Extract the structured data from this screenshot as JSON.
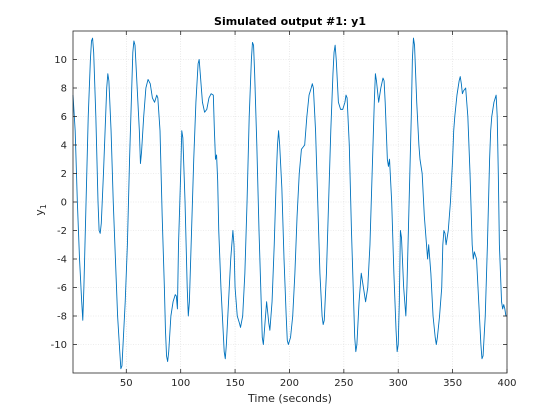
{
  "chart_data": {
    "type": "line",
    "title": "Simulated output #1: y1",
    "xlabel": "Time (seconds)",
    "ylabel": "y",
    "ylabel_subscript": "1",
    "xlim": [
      1,
      400
    ],
    "ylim": [
      -12,
      12
    ],
    "grid": true,
    "xticks": [
      50,
      100,
      150,
      200,
      250,
      300,
      350,
      400
    ],
    "yticks": [
      -10,
      -8,
      -6,
      -4,
      -2,
      0,
      2,
      4,
      6,
      8,
      10
    ],
    "series": [
      {
        "color": "#0072bd",
        "points": [
          [
            1,
            7.5
          ],
          [
            3,
            5
          ],
          [
            5,
            0
          ],
          [
            7,
            -4
          ],
          [
            9,
            -7
          ],
          [
            10,
            -8.3
          ],
          [
            11,
            -6
          ],
          [
            13,
            0
          ],
          [
            15,
            6
          ],
          [
            17,
            10
          ],
          [
            18,
            11.3
          ],
          [
            19,
            11.5
          ],
          [
            20,
            10.5
          ],
          [
            22,
            6
          ],
          [
            24,
            0
          ],
          [
            25,
            -2
          ],
          [
            26,
            -2.2
          ],
          [
            27,
            -1.5
          ],
          [
            29,
            2
          ],
          [
            31,
            6
          ],
          [
            32,
            8
          ],
          [
            33,
            9
          ],
          [
            34,
            8.5
          ],
          [
            36,
            5
          ],
          [
            38,
            0
          ],
          [
            40,
            -4
          ],
          [
            42,
            -8
          ],
          [
            44,
            -10.5
          ],
          [
            45,
            -11.7
          ],
          [
            46,
            -11.5
          ],
          [
            47,
            -10
          ],
          [
            49,
            -7
          ],
          [
            51,
            -3
          ],
          [
            53,
            3
          ],
          [
            55,
            8
          ],
          [
            56,
            10.5
          ],
          [
            57,
            11.3
          ],
          [
            58,
            11
          ],
          [
            60,
            8
          ],
          [
            62,
            5
          ],
          [
            63,
            2.7
          ],
          [
            64,
            3.5
          ],
          [
            66,
            6
          ],
          [
            68,
            8
          ],
          [
            70,
            8.6
          ],
          [
            72,
            8.3
          ],
          [
            74,
            7.3
          ],
          [
            76,
            7
          ],
          [
            78,
            7.5
          ],
          [
            79,
            7.3
          ],
          [
            81,
            5
          ],
          [
            83,
            -1
          ],
          [
            85,
            -6
          ],
          [
            86,
            -9
          ],
          [
            87,
            -10.8
          ],
          [
            88,
            -11.2
          ],
          [
            89,
            -10.5
          ],
          [
            91,
            -8
          ],
          [
            93,
            -7
          ],
          [
            95,
            -6.5
          ],
          [
            96,
            -6.6
          ],
          [
            97,
            -7.5
          ],
          [
            98,
            -3
          ],
          [
            100,
            2
          ],
          [
            101,
            5
          ],
          [
            102,
            4.5
          ],
          [
            104,
            0
          ],
          [
            106,
            -6
          ],
          [
            107,
            -8
          ],
          [
            108,
            -7
          ],
          [
            110,
            -2
          ],
          [
            112,
            3
          ],
          [
            114,
            7
          ],
          [
            116,
            9.7
          ],
          [
            117,
            10
          ],
          [
            118,
            9
          ],
          [
            120,
            7
          ],
          [
            122,
            6.3
          ],
          [
            124,
            6.5
          ],
          [
            126,
            7.3
          ],
          [
            128,
            7.6
          ],
          [
            130,
            7.5
          ],
          [
            131,
            5
          ],
          [
            132,
            3
          ],
          [
            133,
            3.3
          ],
          [
            134,
            1.5
          ],
          [
            135,
            -2
          ],
          [
            137,
            -6
          ],
          [
            139,
            -9
          ],
          [
            140,
            -10.5
          ],
          [
            141,
            -11
          ],
          [
            142,
            -10
          ],
          [
            144,
            -7
          ],
          [
            146,
            -4
          ],
          [
            148,
            -2
          ],
          [
            149,
            -3
          ],
          [
            150,
            -6
          ],
          [
            152,
            -8
          ],
          [
            154,
            -8.5
          ],
          [
            155,
            -8.8
          ],
          [
            157,
            -8
          ],
          [
            159,
            -5
          ],
          [
            161,
            0
          ],
          [
            163,
            6
          ],
          [
            165,
            10
          ],
          [
            166,
            11.2
          ],
          [
            167,
            11
          ],
          [
            168,
            9
          ],
          [
            170,
            4
          ],
          [
            172,
            -2
          ],
          [
            174,
            -7
          ],
          [
            175,
            -9.5
          ],
          [
            176,
            -10
          ],
          [
            177,
            -9
          ],
          [
            179,
            -7
          ],
          [
            181,
            -8.5
          ],
          [
            182,
            -9
          ],
          [
            184,
            -7
          ],
          [
            186,
            -3
          ],
          [
            188,
            2
          ],
          [
            189,
            4
          ],
          [
            190,
            5
          ],
          [
            191,
            4
          ],
          [
            193,
            1
          ],
          [
            195,
            -4
          ],
          [
            197,
            -8
          ],
          [
            198,
            -9.7
          ],
          [
            199,
            -10
          ],
          [
            201,
            -9.5
          ],
          [
            203,
            -8
          ],
          [
            205,
            -5
          ],
          [
            207,
            -1
          ],
          [
            209,
            2
          ],
          [
            211,
            3.7
          ],
          [
            212,
            3.8
          ],
          [
            214,
            4
          ],
          [
            216,
            6
          ],
          [
            218,
            7.5
          ],
          [
            220,
            8
          ],
          [
            221,
            8.3
          ],
          [
            222,
            8
          ],
          [
            224,
            5
          ],
          [
            226,
            0
          ],
          [
            228,
            -5
          ],
          [
            230,
            -8
          ],
          [
            231,
            -8.6
          ],
          [
            232,
            -8.3
          ],
          [
            234,
            -5
          ],
          [
            236,
            0
          ],
          [
            238,
            5
          ],
          [
            240,
            9
          ],
          [
            241,
            10.5
          ],
          [
            242,
            11
          ],
          [
            243,
            10
          ],
          [
            245,
            7
          ],
          [
            247,
            6.5
          ],
          [
            249,
            6.5
          ],
          [
            251,
            7
          ],
          [
            252,
            7.5
          ],
          [
            253,
            7.3
          ],
          [
            255,
            4
          ],
          [
            257,
            -2
          ],
          [
            259,
            -7
          ],
          [
            260,
            -9.5
          ],
          [
            261,
            -10.5
          ],
          [
            262,
            -10
          ],
          [
            264,
            -7
          ],
          [
            266,
            -5
          ],
          [
            268,
            -6
          ],
          [
            270,
            -7
          ],
          [
            272,
            -6
          ],
          [
            274,
            -3
          ],
          [
            276,
            2
          ],
          [
            278,
            7
          ],
          [
            279,
            9
          ],
          [
            280,
            8.5
          ],
          [
            282,
            7
          ],
          [
            284,
            8
          ],
          [
            286,
            8.7
          ],
          [
            287,
            8.5
          ],
          [
            288,
            7
          ],
          [
            290,
            3
          ],
          [
            291,
            2.5
          ],
          [
            292,
            3
          ],
          [
            294,
            0
          ],
          [
            296,
            -5
          ],
          [
            298,
            -9
          ],
          [
            299,
            -10.5
          ],
          [
            300,
            -10
          ],
          [
            301,
            -7
          ],
          [
            302,
            -2
          ],
          [
            303,
            -2.5
          ],
          [
            305,
            -6
          ],
          [
            307,
            -8
          ],
          [
            308,
            -6
          ],
          [
            310,
            0
          ],
          [
            312,
            6
          ],
          [
            313,
            10
          ],
          [
            314,
            11.5
          ],
          [
            315,
            11
          ],
          [
            317,
            7
          ],
          [
            319,
            4
          ],
          [
            320,
            3
          ],
          [
            322,
            2
          ],
          [
            324,
            -1
          ],
          [
            326,
            -3
          ],
          [
            327,
            -4
          ],
          [
            328,
            -3
          ],
          [
            330,
            -5
          ],
          [
            332,
            -8
          ],
          [
            334,
            -9.5
          ],
          [
            335,
            -10
          ],
          [
            336,
            -9.5
          ],
          [
            338,
            -8
          ],
          [
            340,
            -6
          ],
          [
            341,
            -3
          ],
          [
            342,
            -2
          ],
          [
            343,
            -2.2
          ],
          [
            344,
            -3
          ],
          [
            346,
            -2
          ],
          [
            348,
            0
          ],
          [
            350,
            3
          ],
          [
            351,
            5
          ],
          [
            352,
            6
          ],
          [
            354,
            7.5
          ],
          [
            356,
            8.5
          ],
          [
            357,
            8.8
          ],
          [
            358,
            8.3
          ],
          [
            359,
            7.6
          ],
          [
            360,
            7.8
          ],
          [
            362,
            8
          ],
          [
            364,
            6
          ],
          [
            366,
            2
          ],
          [
            368,
            -3
          ],
          [
            369,
            -4
          ],
          [
            370,
            -3.5
          ],
          [
            372,
            -4
          ],
          [
            374,
            -7
          ],
          [
            376,
            -10
          ],
          [
            377,
            -11
          ],
          [
            378,
            -10.8
          ],
          [
            380,
            -8
          ],
          [
            382,
            -3
          ],
          [
            384,
            3
          ],
          [
            385,
            5
          ],
          [
            386,
            6
          ],
          [
            388,
            7
          ],
          [
            390,
            7.5
          ],
          [
            391,
            6
          ],
          [
            392,
            2
          ],
          [
            393,
            -3
          ],
          [
            395,
            -7
          ],
          [
            396,
            -7.5
          ],
          [
            397,
            -7.2
          ],
          [
            398,
            -7.5
          ],
          [
            399,
            -8
          ],
          [
            400,
            -8
          ]
        ]
      }
    ]
  }
}
